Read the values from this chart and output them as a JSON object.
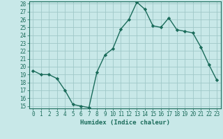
{
  "x": [
    0,
    1,
    2,
    3,
    4,
    5,
    6,
    7,
    8,
    9,
    10,
    11,
    12,
    13,
    14,
    15,
    16,
    17,
    18,
    19,
    20,
    21,
    22,
    23
  ],
  "y": [
    19.5,
    19.0,
    19.0,
    18.5,
    17.0,
    15.2,
    15.0,
    14.8,
    19.3,
    21.5,
    22.3,
    24.8,
    26.0,
    28.2,
    27.3,
    25.2,
    25.0,
    26.2,
    24.7,
    24.5,
    24.3,
    22.5,
    20.3,
    18.3
  ],
  "line_color": "#1a6b5a",
  "marker": "D",
  "marker_size": 2.2,
  "bg_color": "#c8e8e8",
  "grid_color": "#a0c8c8",
  "xlabel": "Humidex (Indice chaleur)",
  "ylim": [
    15,
    28
  ],
  "xlim": [
    -0.5,
    23.5
  ],
  "yticks": [
    15,
    16,
    17,
    18,
    19,
    20,
    21,
    22,
    23,
    24,
    25,
    26,
    27,
    28
  ],
  "xticks": [
    0,
    1,
    2,
    3,
    4,
    5,
    6,
    7,
    8,
    9,
    10,
    11,
    12,
    13,
    14,
    15,
    16,
    17,
    18,
    19,
    20,
    21,
    22,
    23
  ],
  "tick_color": "#1a6b5a",
  "label_color": "#1a6b5a",
  "xlabel_fontsize": 6.5,
  "tick_fontsize": 5.5,
  "linewidth": 1.0
}
